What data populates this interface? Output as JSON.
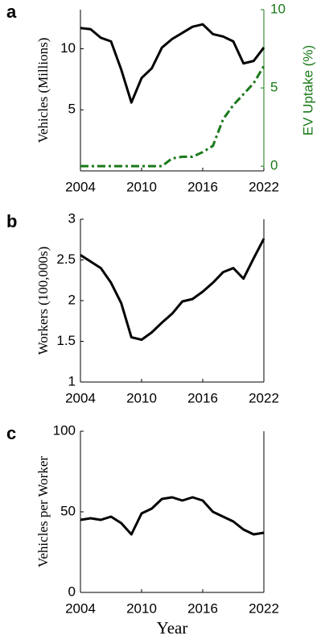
{
  "chart_data": [
    {
      "type": "line",
      "label": "a",
      "ylabel": "Vehicles (Millions)",
      "y2label": "EV Uptake (%)",
      "x": [
        2004,
        2005,
        2006,
        2007,
        2008,
        2009,
        2010,
        2011,
        2012,
        2013,
        2014,
        2015,
        2016,
        2017,
        2018,
        2019,
        2020,
        2021,
        2022
      ],
      "xlim": [
        2004,
        2022
      ],
      "xticks": [
        2004,
        2010,
        2016,
        2022
      ],
      "ylim": [
        0,
        13.2
      ],
      "yticks": [
        5,
        10
      ],
      "y2lim": [
        -0.3,
        10
      ],
      "y2ticks": [
        0,
        5,
        10
      ],
      "y2color": "#1a7a1a",
      "series": [
        {
          "color": "#000000",
          "values": [
            11.7,
            11.6,
            10.9,
            10.6,
            8.3,
            5.6,
            7.6,
            8.4,
            10.1,
            10.8,
            11.3,
            11.8,
            12.0,
            11.2,
            11.0,
            10.6,
            8.8,
            9.0,
            10.1
          ]
        },
        {
          "color": "#1a7a1a",
          "axis": "y2",
          "dash": "dashdot",
          "values": [
            0,
            0,
            0,
            0,
            0,
            0,
            0,
            0,
            0,
            0.5,
            0.6,
            0.6,
            0.9,
            1.3,
            3.0,
            3.9,
            4.6,
            5.3,
            6.4
          ]
        }
      ]
    },
    {
      "type": "line",
      "label": "b",
      "ylabel": "Workers (100,000s)",
      "x": [
        2004,
        2005,
        2006,
        2007,
        2008,
        2009,
        2010,
        2011,
        2012,
        2013,
        2014,
        2015,
        2016,
        2017,
        2018,
        2019,
        2020,
        2021,
        2022
      ],
      "xlim": [
        2004,
        2022
      ],
      "xticks": [
        2004,
        2010,
        2016,
        2022
      ],
      "ylim": [
        1,
        3
      ],
      "yticks": [
        1,
        1.5,
        2,
        2.5,
        3
      ],
      "series": [
        {
          "color": "#000000",
          "values": [
            2.56,
            2.48,
            2.4,
            2.22,
            1.97,
            1.55,
            1.52,
            1.61,
            1.73,
            1.84,
            1.99,
            2.02,
            2.11,
            2.22,
            2.35,
            2.4,
            2.27,
            2.52,
            2.76
          ]
        }
      ]
    },
    {
      "type": "line",
      "label": "c",
      "ylabel": "Vehicles per Worker",
      "xlabel": "Year",
      "x": [
        2004,
        2005,
        2006,
        2007,
        2008,
        2009,
        2010,
        2011,
        2012,
        2013,
        2014,
        2015,
        2016,
        2017,
        2018,
        2019,
        2020,
        2021,
        2022
      ],
      "xlim": [
        2004,
        2022
      ],
      "xticks": [
        2004,
        2010,
        2016,
        2022
      ],
      "ylim": [
        0,
        100
      ],
      "yticks": [
        0,
        50,
        100
      ],
      "series": [
        {
          "color": "#000000",
          "values": [
            45,
            46,
            45,
            47,
            43,
            36,
            49,
            52,
            58,
            59,
            57,
            59,
            57,
            50,
            47,
            44,
            39,
            36,
            37
          ]
        }
      ]
    }
  ]
}
